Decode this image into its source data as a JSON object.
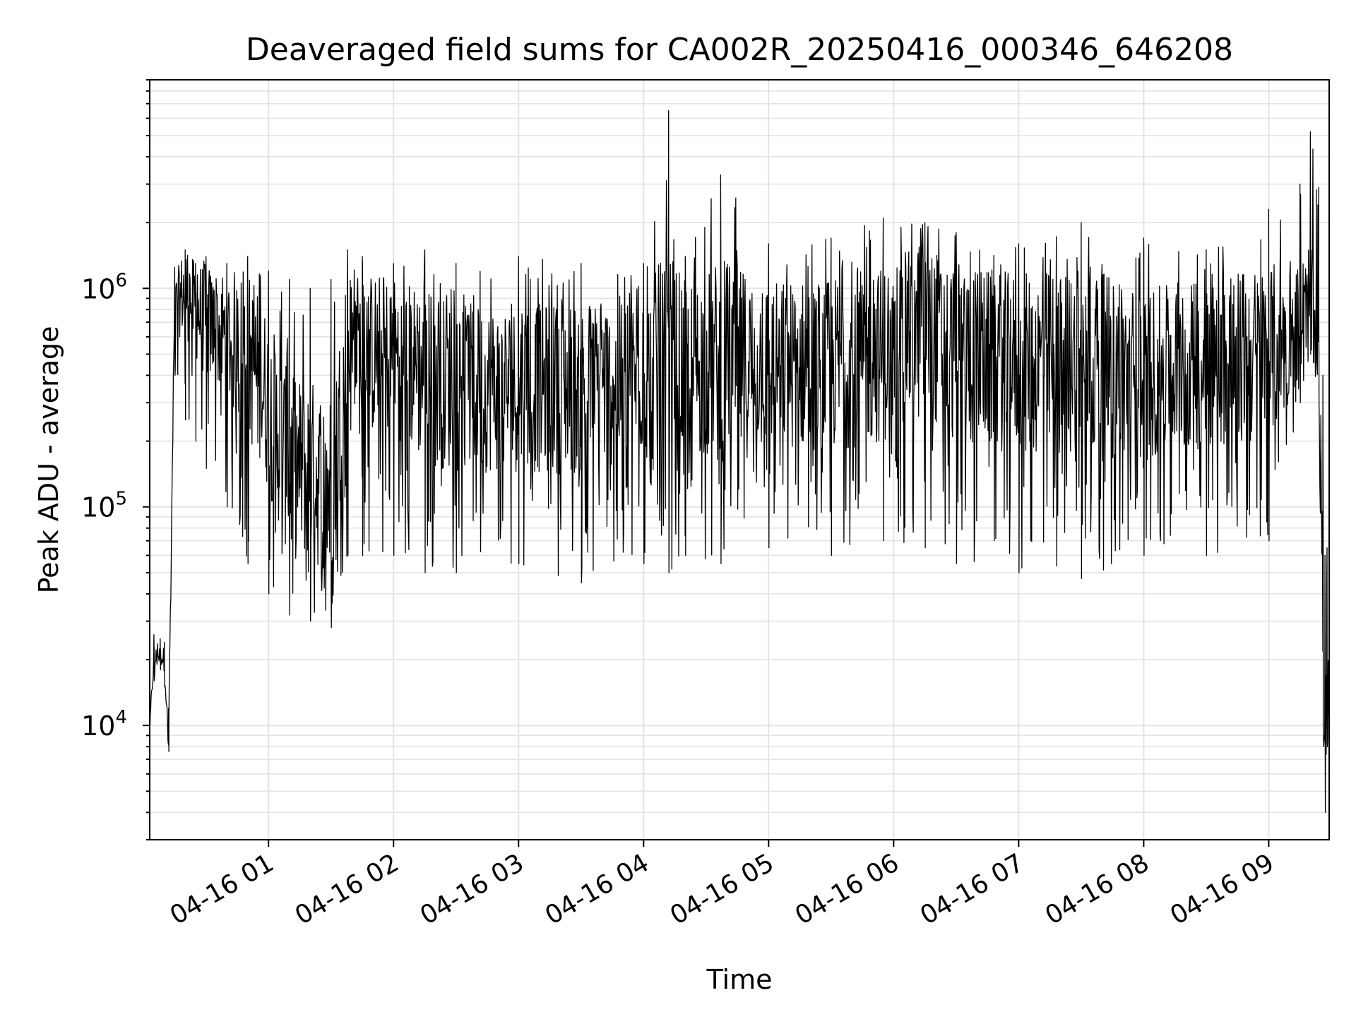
{
  "chart_data": {
    "type": "line",
    "title": "Deaveraged field sums for CA002R_20250416_000346_646208",
    "xlabel": "Time",
    "ylabel": "Peak ADU - average",
    "x_axis": {
      "kind": "time",
      "range": [
        "2025-04-16 00:03",
        "2025-04-16 09:29"
      ],
      "tick_labels": [
        "04-16 01",
        "04-16 02",
        "04-16 03",
        "04-16 04",
        "04-16 05",
        "04-16 06",
        "04-16 07",
        "04-16 08",
        "04-16 09"
      ]
    },
    "y_axis": {
      "scale": "log",
      "range": [
        3000,
        9000000
      ],
      "tick_labels": [
        {
          "base": "10",
          "exponent": "4",
          "value": 10000
        },
        {
          "base": "10",
          "exponent": "5",
          "value": 100000
        },
        {
          "base": "10",
          "exponent": "6",
          "value": 1000000
        }
      ]
    },
    "grid": true,
    "line_color": "#000000",
    "series": [
      {
        "x": [
          "2025-04-16 00:03",
          "2025-04-16 00:05",
          "2025-04-16 00:08",
          "2025-04-16 00:10",
          "2025-04-16 00:12",
          "2025-04-16 00:15",
          "2025-04-16 00:20",
          "2025-04-16 00:25",
          "2025-04-16 00:30",
          "2025-04-16 00:40",
          "2025-04-16 00:50",
          "2025-04-16 01:00",
          "2025-04-16 01:10",
          "2025-04-16 01:20",
          "2025-04-16 01:30",
          "2025-04-16 01:38",
          "2025-04-16 01:45",
          "2025-04-16 02:00",
          "2025-04-16 02:15",
          "2025-04-16 02:30",
          "2025-04-16 03:00",
          "2025-04-16 03:30",
          "2025-04-16 04:00",
          "2025-04-16 04:12",
          "2025-04-16 04:20",
          "2025-04-16 04:37",
          "2025-04-16 05:00",
          "2025-04-16 05:30",
          "2025-04-16 05:55",
          "2025-04-16 06:15",
          "2025-04-16 06:30",
          "2025-04-16 07:00",
          "2025-04-16 07:30",
          "2025-04-16 08:00",
          "2025-04-16 08:30",
          "2025-04-16 09:00",
          "2025-04-16 09:15",
          "2025-04-16 09:20",
          "2025-04-16 09:24",
          "2025-04-16 09:26",
          "2025-04-16 09:27",
          "2025-04-16 09:28",
          "2025-04-16 09:29"
        ],
        "y_typical": [
          10000,
          20000,
          21000,
          20000,
          8000,
          800000,
          1000000,
          800000,
          700000,
          600000,
          500000,
          300000,
          150000,
          150000,
          120000,
          500000,
          500000,
          500000,
          400000,
          350000,
          350000,
          350000,
          400000,
          400000,
          450000,
          450000,
          450000,
          450000,
          500000,
          650000,
          500000,
          450000,
          450000,
          400000,
          450000,
          500000,
          700000,
          900000,
          500000,
          30000,
          10000,
          15000,
          12000
        ],
        "y_high": [
          10000,
          26000,
          25000,
          24000,
          12000,
          1250000,
          1500000,
          1300000,
          1400000,
          1300000,
          1400000,
          1200000,
          1100000,
          1000000,
          1100000,
          1500000,
          1400000,
          1300000,
          1500000,
          1300000,
          1400000,
          1300000,
          1300000,
          6500000,
          1400000,
          3300000,
          1600000,
          1700000,
          2100000,
          2000000,
          1800000,
          1600000,
          2000000,
          1700000,
          1500000,
          2300000,
          3000000,
          5200000,
          2900000,
          400000,
          60000,
          65000,
          30000
        ],
        "y_low": [
          10000,
          16000,
          18000,
          15000,
          7600,
          400000,
          250000,
          200000,
          150000,
          100000,
          55000,
          40000,
          32000,
          30000,
          28000,
          60000,
          60000,
          60000,
          50000,
          50000,
          55000,
          45000,
          55000,
          50000,
          60000,
          55000,
          65000,
          60000,
          70000,
          65000,
          55000,
          50000,
          47000,
          60000,
          60000,
          70000,
          300000,
          500000,
          300000,
          10000,
          4000,
          8000,
          10000
        ]
      }
    ]
  }
}
